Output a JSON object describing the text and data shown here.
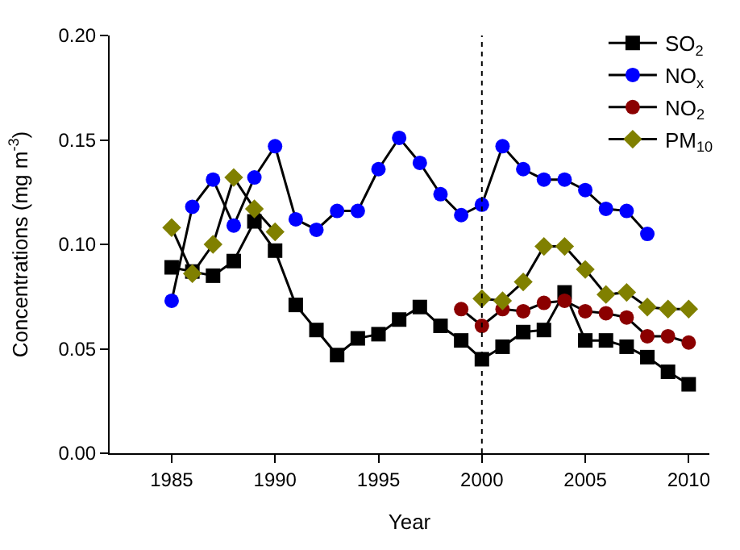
{
  "chart_data": {
    "type": "line",
    "xlabel": "Year",
    "ylabel": "Concentrations (mg m$^{-3}$)",
    "x": [
      1985,
      1986,
      1987,
      1988,
      1989,
      1990,
      1991,
      1992,
      1993,
      1994,
      1995,
      1996,
      1997,
      1998,
      1999,
      2000,
      2001,
      2002,
      2003,
      2004,
      2005,
      2006,
      2007,
      2008,
      2009,
      2010
    ],
    "series": [
      {
        "name": "SO$_{2}$",
        "color": "#000000",
        "marker": "square",
        "values": [
          0.089,
          0.087,
          0.085,
          0.092,
          0.111,
          0.097,
          0.071,
          0.059,
          0.047,
          0.055,
          0.057,
          0.064,
          0.07,
          0.061,
          0.054,
          0.045,
          0.051,
          0.058,
          0.059,
          0.077,
          0.054,
          0.054,
          0.051,
          0.046,
          0.039,
          0.033
        ]
      },
      {
        "name": "NO$_{x}$",
        "color": "#0000ff",
        "marker": "circle",
        "values": [
          0.073,
          0.118,
          0.131,
          0.109,
          0.132,
          0.147,
          0.112,
          0.107,
          0.116,
          0.116,
          0.136,
          0.151,
          0.139,
          0.124,
          0.114,
          0.119,
          0.147,
          0.136,
          0.131,
          0.131,
          0.126,
          0.117,
          0.116,
          0.105,
          null,
          null
        ]
      },
      {
        "name": "NO$_{2}$",
        "color": "#8b0000",
        "marker": "circle",
        "values": [
          null,
          null,
          null,
          null,
          null,
          null,
          null,
          null,
          null,
          null,
          null,
          null,
          null,
          null,
          0.069,
          0.061,
          0.069,
          0.068,
          0.072,
          0.073,
          0.068,
          0.067,
          0.065,
          0.056,
          0.056,
          0.053
        ]
      },
      {
        "name": "PM$_{10}$",
        "color": "#808000",
        "marker": "diamond",
        "values": [
          0.108,
          0.086,
          0.1,
          0.132,
          0.117,
          0.106,
          null,
          null,
          null,
          null,
          null,
          null,
          null,
          null,
          null,
          0.074,
          0.073,
          0.082,
          0.099,
          0.099,
          0.088,
          0.076,
          0.077,
          0.07,
          0.069,
          0.069
        ]
      }
    ],
    "xlim": [
      1982,
      2011
    ],
    "xticks": [
      1985,
      1990,
      1995,
      2000,
      2005,
      2010
    ],
    "ylim": [
      0,
      0.2
    ],
    "yticks": [
      {
        "value": 0,
        "label": "0.00"
      },
      {
        "value": 0.05,
        "label": "0.05"
      },
      {
        "value": 0.1,
        "label": "0.10"
      },
      {
        "value": 0.15,
        "label": "0.15"
      },
      {
        "value": 0.2,
        "label": "0.20"
      }
    ],
    "ref_lines": [
      {
        "axis": "x",
        "value": 2000,
        "line_style": "dotted",
        "color": "#000000"
      }
    ],
    "legend": "top right"
  }
}
